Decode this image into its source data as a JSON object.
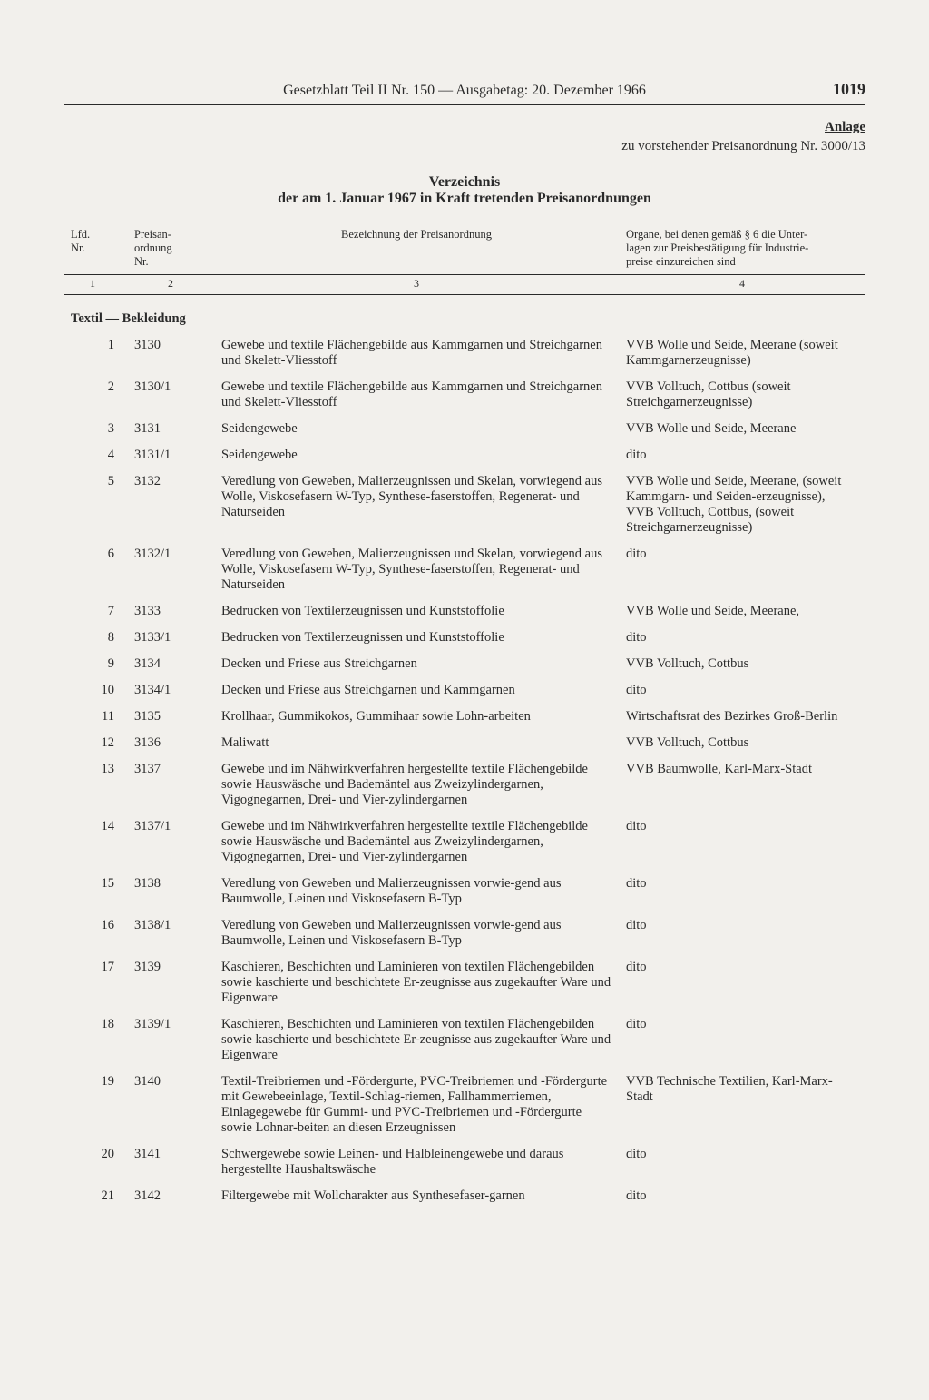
{
  "header": {
    "running_title": "Gesetzblatt Teil II Nr. 150 — Ausgabetag: 20. Dezember 1966",
    "page_number": "1019"
  },
  "anlage": {
    "label": "Anlage",
    "subline": "zu vorstehender Preisanordnung Nr. 3000/13"
  },
  "verzeichnis": {
    "line1": "Verzeichnis",
    "line2": "der am 1. Januar 1967 in Kraft tretenden Preisanordnungen"
  },
  "columns": {
    "c1": "Lfd.\nNr.",
    "c2": "Preisan-\nordnung\nNr.",
    "c3": "Bezeichnung der Preisanordnung",
    "c4": "Organe, bei denen gemäß § 6 die Unter-\nlagen zur Preisbestätigung für Industrie-\npreise einzureichen sind",
    "n1": "1",
    "n2": "2",
    "n3": "3",
    "n4": "4"
  },
  "section_title": "Textil — Bekleidung",
  "rows": [
    {
      "n": "1",
      "nr": "3130",
      "bez": "Gewebe und textile Flächengebilde aus Kammgarnen und Streichgarnen und Skelett-Vliesstoff",
      "org": "VVB Wolle und Seide, Meerane (soweit Kammgarnerzeugnisse)"
    },
    {
      "n": "2",
      "nr": "3130/1",
      "bez": "Gewebe und textile Flächengebilde aus Kammgarnen und Streichgarnen und Skelett-Vliesstoff",
      "org": "VVB Volltuch, Cottbus (soweit Streichgarnerzeugnisse)"
    },
    {
      "n": "3",
      "nr": "3131",
      "bez": "Seidengewebe",
      "org": "VVB Wolle und Seide, Meerane"
    },
    {
      "n": "4",
      "nr": "3131/1",
      "bez": "Seidengewebe",
      "org": "dito"
    },
    {
      "n": "5",
      "nr": "3132",
      "bez": "Veredlung von Geweben, Malierzeugnissen und Skelan, vorwiegend aus Wolle, Viskosefasern W-Typ, Synthese-faserstoffen, Regenerat- und Naturseiden",
      "org": "VVB Wolle und Seide, Meerane, (soweit Kammgarn- und Seiden-erzeugnisse),\nVVB Volltuch, Cottbus, (soweit Streichgarnerzeugnisse)"
    },
    {
      "n": "6",
      "nr": "3132/1",
      "bez": "Veredlung von Geweben, Malierzeugnissen und Skelan, vorwiegend aus Wolle, Viskosefasern W-Typ, Synthese-faserstoffen, Regenerat- und Naturseiden",
      "org": "dito"
    },
    {
      "n": "7",
      "nr": "3133",
      "bez": "Bedrucken von Textilerzeugnissen und Kunststoffolie",
      "org": "VVB Wolle und Seide, Meerane,"
    },
    {
      "n": "8",
      "nr": "3133/1",
      "bez": "Bedrucken von Textilerzeugnissen und Kunststoffolie",
      "org": "dito"
    },
    {
      "n": "9",
      "nr": "3134",
      "bez": "Decken und Friese aus Streichgarnen",
      "org": "VVB Volltuch, Cottbus"
    },
    {
      "n": "10",
      "nr": "3134/1",
      "bez": "Decken und Friese aus Streichgarnen und Kammgarnen",
      "org": "dito"
    },
    {
      "n": "11",
      "nr": "3135",
      "bez": "Krollhaar, Gummikokos, Gummihaar sowie Lohn-arbeiten",
      "org": "Wirtschaftsrat des Bezirkes Groß-Berlin"
    },
    {
      "n": "12",
      "nr": "3136",
      "bez": "Maliwatt",
      "org": "VVB Volltuch, Cottbus"
    },
    {
      "n": "13",
      "nr": "3137",
      "bez": "Gewebe und im Nähwirkverfahren hergestellte textile Flächengebilde sowie Hauswäsche und Bademäntel aus Zweizylindergarnen, Vigognegarnen, Drei- und Vier-zylindergarnen",
      "org": "VVB Baumwolle, Karl-Marx-Stadt"
    },
    {
      "n": "14",
      "nr": "3137/1",
      "bez": "Gewebe und im Nähwirkverfahren hergestellte textile Flächengebilde sowie Hauswäsche und Bademäntel aus Zweizylindergarnen, Vigognegarnen, Drei- und Vier-zylindergarnen",
      "org": "dito"
    },
    {
      "n": "15",
      "nr": "3138",
      "bez": "Veredlung von Geweben und Malierzeugnissen vorwie-gend aus Baumwolle, Leinen und Viskosefasern B-Typ",
      "org": "dito"
    },
    {
      "n": "16",
      "nr": "3138/1",
      "bez": "Veredlung von Geweben und Malierzeugnissen vorwie-gend aus Baumwolle, Leinen und Viskosefasern B-Typ",
      "org": "dito"
    },
    {
      "n": "17",
      "nr": "3139",
      "bez": "Kaschieren, Beschichten und Laminieren von textilen Flächengebilden sowie kaschierte und beschichtete Er-zeugnisse aus zugekaufter Ware und Eigenware",
      "org": "dito"
    },
    {
      "n": "18",
      "nr": "3139/1",
      "bez": "Kaschieren, Beschichten und Laminieren von textilen Flächengebilden sowie kaschierte und beschichtete Er-zeugnisse aus zugekaufter Ware und Eigenware",
      "org": "dito"
    },
    {
      "n": "19",
      "nr": "3140",
      "bez": "Textil-Treibriemen und -Fördergurte, PVC-Treibriemen und -Fördergurte mit Gewebeeinlage, Textil-Schlag-riemen, Fallhammerriemen, Einlagegewebe für Gummi- und PVC-Treibriemen und -Fördergurte sowie Lohnar-beiten an diesen Erzeugnissen",
      "org": "VVB Technische Textilien, Karl-Marx-Stadt"
    },
    {
      "n": "20",
      "nr": "3141",
      "bez": "Schwergewebe sowie Leinen- und Halbleinengewebe und daraus hergestellte Haushaltswäsche",
      "org": "dito"
    },
    {
      "n": "21",
      "nr": "3142",
      "bez": "Filtergewebe mit Wollcharakter aus Synthesefaser-garnen",
      "org": "dito"
    }
  ]
}
